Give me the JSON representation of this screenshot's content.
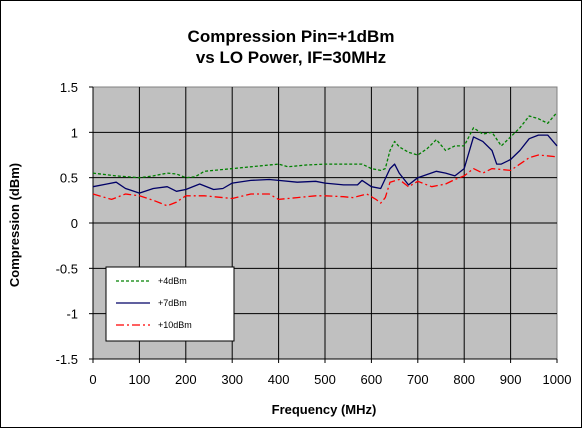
{
  "chart_data": {
    "type": "line",
    "title_line1": "Compression Pin=+1dBm",
    "title_line2": "vs LO Power, IF=30MHz",
    "xlabel": "Frequency (MHz)",
    "ylabel": "Compression (dBm)",
    "xlim": [
      0,
      1000
    ],
    "ylim": [
      -1.5,
      1.5
    ],
    "xticks": [
      "0",
      "100",
      "200",
      "300",
      "400",
      "500",
      "600",
      "700",
      "800",
      "900",
      "1000"
    ],
    "yticks": [
      "1.5",
      "1",
      "0.5",
      "0",
      "-0.5",
      "-1",
      "-1.5"
    ],
    "grid": true,
    "plot_background": "#c0c0c0",
    "legend_position": "lower-left",
    "series": [
      {
        "name": "+4dBm",
        "color": "#008000",
        "style": "dashed",
        "points": [
          [
            0,
            0.55
          ],
          [
            50,
            0.52
          ],
          [
            100,
            0.5
          ],
          [
            130,
            0.52
          ],
          [
            160,
            0.55
          ],
          [
            180,
            0.54
          ],
          [
            200,
            0.5
          ],
          [
            220,
            0.51
          ],
          [
            240,
            0.57
          ],
          [
            260,
            0.58
          ],
          [
            300,
            0.6
          ],
          [
            340,
            0.62
          ],
          [
            380,
            0.64
          ],
          [
            400,
            0.65
          ],
          [
            420,
            0.62
          ],
          [
            460,
            0.64
          ],
          [
            500,
            0.65
          ],
          [
            540,
            0.65
          ],
          [
            580,
            0.65
          ],
          [
            600,
            0.6
          ],
          [
            620,
            0.58
          ],
          [
            630,
            0.6
          ],
          [
            640,
            0.8
          ],
          [
            650,
            0.9
          ],
          [
            660,
            0.84
          ],
          [
            680,
            0.78
          ],
          [
            700,
            0.75
          ],
          [
            720,
            0.82
          ],
          [
            740,
            0.92
          ],
          [
            760,
            0.8
          ],
          [
            780,
            0.85
          ],
          [
            800,
            0.85
          ],
          [
            820,
            1.05
          ],
          [
            840,
            0.98
          ],
          [
            860,
            1.0
          ],
          [
            880,
            0.85
          ],
          [
            900,
            0.95
          ],
          [
            920,
            1.05
          ],
          [
            940,
            1.18
          ],
          [
            960,
            1.15
          ],
          [
            980,
            1.1
          ],
          [
            1000,
            1.22
          ]
        ]
      },
      {
        "name": "+7dBm",
        "color": "#000066",
        "style": "solid",
        "points": [
          [
            0,
            0.4
          ],
          [
            30,
            0.43
          ],
          [
            50,
            0.45
          ],
          [
            70,
            0.38
          ],
          [
            100,
            0.33
          ],
          [
            130,
            0.38
          ],
          [
            160,
            0.4
          ],
          [
            180,
            0.35
          ],
          [
            200,
            0.37
          ],
          [
            230,
            0.43
          ],
          [
            260,
            0.37
          ],
          [
            280,
            0.38
          ],
          [
            300,
            0.44
          ],
          [
            340,
            0.47
          ],
          [
            380,
            0.48
          ],
          [
            400,
            0.47
          ],
          [
            440,
            0.45
          ],
          [
            480,
            0.46
          ],
          [
            500,
            0.44
          ],
          [
            540,
            0.42
          ],
          [
            570,
            0.42
          ],
          [
            580,
            0.47
          ],
          [
            600,
            0.4
          ],
          [
            620,
            0.38
          ],
          [
            640,
            0.6
          ],
          [
            650,
            0.65
          ],
          [
            660,
            0.55
          ],
          [
            680,
            0.42
          ],
          [
            700,
            0.5
          ],
          [
            740,
            0.57
          ],
          [
            760,
            0.55
          ],
          [
            780,
            0.52
          ],
          [
            800,
            0.6
          ],
          [
            820,
            0.95
          ],
          [
            840,
            0.9
          ],
          [
            860,
            0.8
          ],
          [
            870,
            0.65
          ],
          [
            880,
            0.65
          ],
          [
            900,
            0.7
          ],
          [
            920,
            0.8
          ],
          [
            940,
            0.93
          ],
          [
            960,
            0.97
          ],
          [
            980,
            0.97
          ],
          [
            1000,
            0.85
          ]
        ]
      },
      {
        "name": "+10dBm",
        "color": "#ff0000",
        "style": "dashdot",
        "points": [
          [
            0,
            0.32
          ],
          [
            40,
            0.26
          ],
          [
            70,
            0.32
          ],
          [
            100,
            0.3
          ],
          [
            130,
            0.25
          ],
          [
            160,
            0.19
          ],
          [
            180,
            0.23
          ],
          [
            200,
            0.3
          ],
          [
            240,
            0.3
          ],
          [
            280,
            0.28
          ],
          [
            300,
            0.27
          ],
          [
            340,
            0.32
          ],
          [
            380,
            0.32
          ],
          [
            400,
            0.26
          ],
          [
            440,
            0.28
          ],
          [
            480,
            0.3
          ],
          [
            500,
            0.3
          ],
          [
            540,
            0.29
          ],
          [
            560,
            0.28
          ],
          [
            590,
            0.32
          ],
          [
            610,
            0.26
          ],
          [
            620,
            0.22
          ],
          [
            630,
            0.28
          ],
          [
            640,
            0.45
          ],
          [
            660,
            0.48
          ],
          [
            680,
            0.4
          ],
          [
            700,
            0.46
          ],
          [
            730,
            0.4
          ],
          [
            760,
            0.43
          ],
          [
            780,
            0.48
          ],
          [
            800,
            0.52
          ],
          [
            820,
            0.6
          ],
          [
            840,
            0.55
          ],
          [
            860,
            0.6
          ],
          [
            900,
            0.58
          ],
          [
            920,
            0.65
          ],
          [
            940,
            0.72
          ],
          [
            960,
            0.75
          ],
          [
            1000,
            0.73
          ]
        ]
      }
    ]
  }
}
